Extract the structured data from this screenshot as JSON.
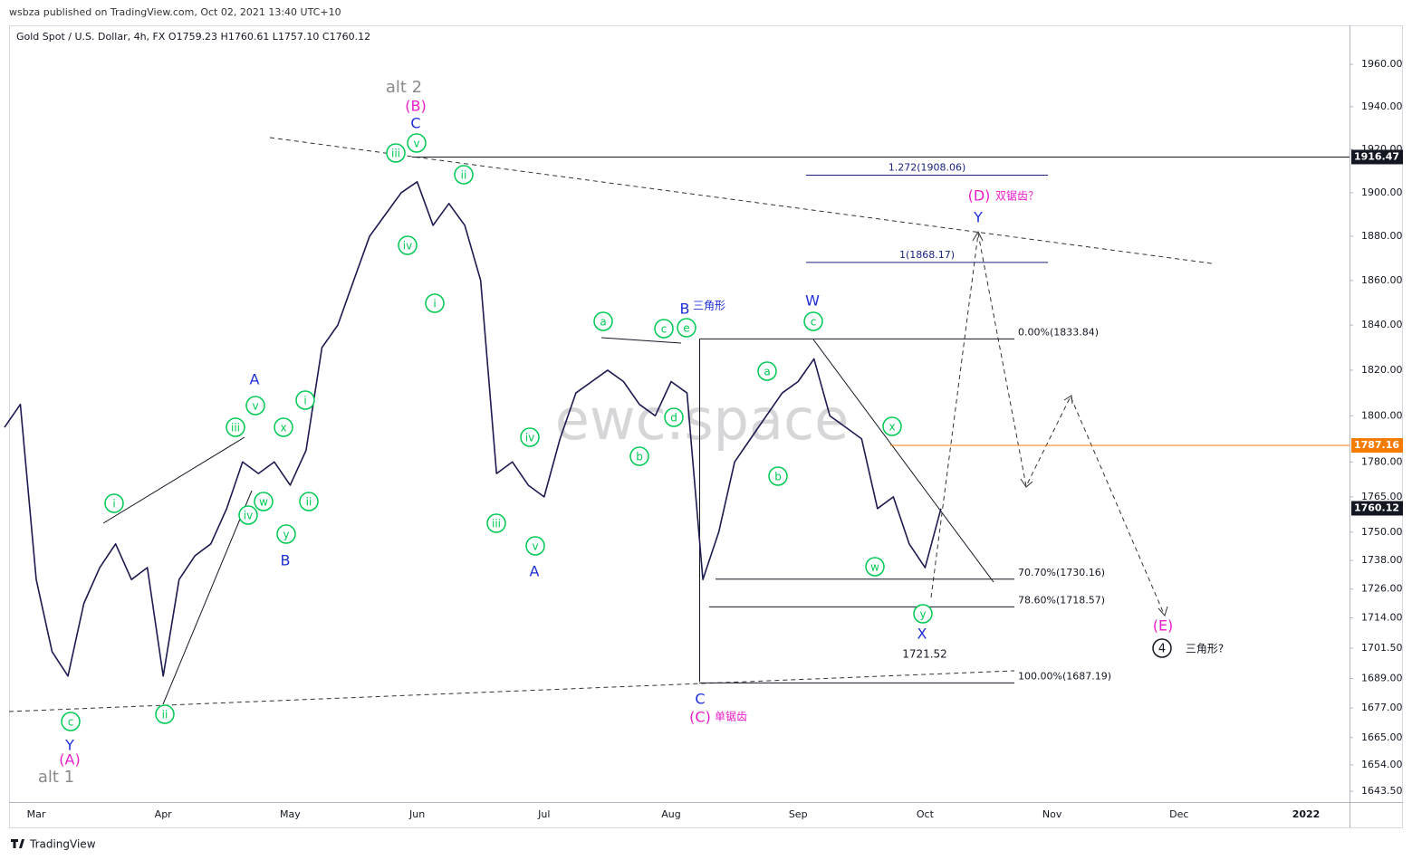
{
  "header": {
    "publisher": "wsbza published on TradingView.com, Oct 02, 2021 13:40 UTC+10",
    "footer": "TradingView",
    "watermark": "ewc.space"
  },
  "chart_data": {
    "type": "line",
    "title": "Gold Spot / U.S. Dollar, 4h, FX  O1759.23  H1760.61  L1757.10  C1760.12",
    "log_scale": true,
    "grid": false,
    "categories": [
      null,
      null,
      "Mar",
      null,
      null,
      null,
      null,
      null,
      null,
      null,
      "Apr",
      null,
      null,
      null,
      null,
      null,
      null,
      null,
      "May",
      null,
      null,
      null,
      null,
      null,
      null,
      null,
      "Jun",
      null,
      null,
      null,
      null,
      null,
      null,
      null,
      "Jul",
      null,
      null,
      null,
      null,
      null,
      null,
      null,
      "Aug",
      null,
      null,
      null,
      null,
      null,
      null,
      null,
      "Sep",
      null,
      null,
      null,
      null,
      null,
      null,
      null,
      "Oct",
      null,
      null,
      null,
      null,
      null,
      null,
      null,
      "Nov",
      null,
      null,
      null,
      null,
      null,
      null,
      null,
      "Dec",
      null,
      null,
      null,
      null,
      null,
      null,
      null,
      "2022",
      null,
      null
    ],
    "series": [
      {
        "name": "XAUUSD",
        "color": "#1c1a4f",
        "values": [
          1795,
          1805,
          1730,
          1700,
          1690,
          1720,
          1735,
          1745,
          1730,
          1735,
          1690,
          1730,
          1740,
          1745,
          1760,
          1780,
          1775,
          1780,
          1770,
          1785,
          1830,
          1840,
          1860,
          1880,
          1890,
          1900,
          1905,
          1885,
          1895,
          1885,
          1860,
          1775,
          1780,
          1770,
          1765,
          1790,
          1810,
          1815,
          1820,
          1815,
          1805,
          1800,
          1815,
          1810,
          1730,
          1750,
          1780,
          1790,
          1800,
          1810,
          1815,
          1825,
          1800,
          1795,
          1790,
          1760,
          1765,
          1745,
          1735,
          1760,
          null,
          null,
          null,
          null,
          null,
          null,
          null,
          null,
          null,
          null,
          null,
          null,
          null,
          null,
          null,
          null,
          null,
          null,
          null,
          null,
          null,
          null,
          null,
          null,
          null
        ]
      }
    ],
    "ylim": [
      1639.2,
      1978.6
    ],
    "yticks": [
      {
        "value": 1960,
        "label": "1960.00"
      },
      {
        "value": 1940,
        "label": "1940.00"
      },
      {
        "value": 1920,
        "label": "1920.00"
      },
      {
        "value": 1900,
        "label": "1900.00"
      },
      {
        "value": 1880,
        "label": "1880.00"
      },
      {
        "value": 1860,
        "label": "1860.00"
      },
      {
        "value": 1840,
        "label": "1840.00"
      },
      {
        "value": 1820,
        "label": "1820.00"
      },
      {
        "value": 1800,
        "label": "1800.00"
      },
      {
        "value": 1780,
        "label": "1780.00"
      },
      {
        "value": 1765,
        "label": "1765.00"
      },
      {
        "value": 1750,
        "label": "1750.00"
      },
      {
        "value": 1738,
        "label": "1738.00"
      },
      {
        "value": 1726,
        "label": "1726.00"
      },
      {
        "value": 1714,
        "label": "1714.00"
      },
      {
        "value": 1701.5,
        "label": "1701.50"
      },
      {
        "value": 1689,
        "label": "1689.00"
      },
      {
        "value": 1677,
        "label": "1677.00"
      },
      {
        "value": 1665,
        "label": "1665.00"
      },
      {
        "value": 1654,
        "label": "1654.00"
      },
      {
        "value": 1643.5,
        "label": "1643.50"
      }
    ],
    "price_lines": [
      {
        "value": 1916.47,
        "color": "#131722"
      },
      {
        "value": 1787.16,
        "color": "#f57c00"
      },
      {
        "value": 1760.12,
        "color": "#131722"
      }
    ],
    "fib_levels": [
      {
        "value": 1908.06,
        "label": "1.272(1908.06)",
        "color": "#1a237e"
      },
      {
        "value": 1868.17,
        "label": "1(1868.17)",
        "color": "#1a237e"
      },
      {
        "value": 1833.84,
        "label": "0.00%(1833.84)",
        "color": "#131722"
      },
      {
        "value": 1730.16,
        "label": "70.70%(1730.16)",
        "color": "#131722"
      },
      {
        "value": 1718.57,
        "label": "78.60%(1718.57)",
        "color": "#131722"
      },
      {
        "value": 1687.19,
        "label": "100.00%(1687.19)",
        "color": "#131722"
      }
    ],
    "annotations": [
      {
        "text": "c",
        "style": "circle",
        "color": "#00c853"
      },
      {
        "text": "ii",
        "style": "circle",
        "color": "#00c853"
      },
      {
        "text": "i",
        "style": "circle",
        "color": "#00c853"
      },
      {
        "text": "iii",
        "style": "circle",
        "color": "#00c853"
      },
      {
        "text": "iv",
        "style": "circle",
        "color": "#00c853"
      },
      {
        "text": "v",
        "style": "circle",
        "color": "#00c853"
      },
      {
        "text": "w",
        "style": "circle",
        "color": "#00c853"
      },
      {
        "text": "x",
        "style": "circle",
        "color": "#00c853"
      },
      {
        "text": "y",
        "style": "circle",
        "color": "#00c853"
      },
      {
        "text": "i",
        "style": "circle",
        "color": "#00c853"
      },
      {
        "text": "ii",
        "style": "circle",
        "color": "#00c853"
      },
      {
        "text": "iii",
        "style": "circle",
        "color": "#00c853"
      },
      {
        "text": "v",
        "style": "circle",
        "color": "#00c853"
      },
      {
        "text": "ii",
        "style": "circle",
        "color": "#00c853"
      },
      {
        "text": "iv",
        "style": "circle",
        "color": "#00c853"
      },
      {
        "text": "i",
        "style": "circle",
        "color": "#00c853"
      },
      {
        "text": "iv",
        "style": "circle",
        "color": "#00c853"
      },
      {
        "text": "iii",
        "style": "circle",
        "color": "#00c853"
      },
      {
        "text": "v",
        "style": "circle",
        "color": "#00c853"
      },
      {
        "text": "a",
        "style": "circle",
        "color": "#00c853"
      },
      {
        "text": "b",
        "style": "circle",
        "color": "#00c853"
      },
      {
        "text": "c",
        "style": "circle",
        "color": "#00c853"
      },
      {
        "text": "d",
        "style": "circle",
        "color": "#00c853"
      },
      {
        "text": "e",
        "style": "circle",
        "color": "#00c853"
      },
      {
        "text": "a",
        "style": "circle",
        "color": "#00c853"
      },
      {
        "text": "b",
        "style": "circle",
        "color": "#00c853"
      },
      {
        "text": "c",
        "style": "circle",
        "color": "#00c853"
      },
      {
        "text": "x",
        "style": "circle",
        "color": "#00c853"
      },
      {
        "text": "w",
        "style": "circle",
        "color": "#00c853"
      },
      {
        "text": "y",
        "style": "circle",
        "color": "#00c853"
      },
      {
        "text": "Y",
        "style": "big",
        "color": "#1e2fd6"
      },
      {
        "text": "A",
        "style": "big",
        "color": "#1e2fd6"
      },
      {
        "text": "B",
        "style": "big",
        "color": "#1e2fd6"
      },
      {
        "text": "C",
        "style": "big",
        "color": "#1e2fd6"
      },
      {
        "text": "A",
        "style": "big",
        "color": "#1e2fd6"
      },
      {
        "text": "B",
        "style": "big",
        "color": "#1e2fd6"
      },
      {
        "text": "三角形",
        "style": "small",
        "color": "#1e2fd6"
      },
      {
        "text": "W",
        "style": "big",
        "color": "#1e2fd6"
      },
      {
        "text": "C",
        "style": "big",
        "color": "#1e2fd6"
      },
      {
        "text": "X",
        "style": "big",
        "color": "#1e2fd6"
      },
      {
        "text": "Y",
        "style": "big",
        "color": "#1e2fd6"
      },
      {
        "text": "(A)",
        "style": "big",
        "color": "#e91ec8"
      },
      {
        "text": "(B)",
        "style": "big",
        "color": "#e91ec8"
      },
      {
        "text": "(C)",
        "style": "big",
        "color": "#e91ec8"
      },
      {
        "text": "单锯齿",
        "style": "small",
        "color": "#e91ec8"
      },
      {
        "text": "(D)",
        "style": "big",
        "color": "#e91ec8"
      },
      {
        "text": "双锯齿？",
        "style": "small",
        "color": "#e91ec8"
      },
      {
        "text": "(E)",
        "style": "big",
        "color": "#e91ec8"
      },
      {
        "text": "alt 2",
        "style": "huge",
        "color": "#8a8a8a"
      },
      {
        "text": "alt 1",
        "style": "huge",
        "color": "#8a8a8a"
      },
      {
        "text": "1721.52",
        "style": "small",
        "color": "#131722"
      },
      {
        "text": "4",
        "style": "ring",
        "color": "#131722"
      },
      {
        "text": "三角形?",
        "style": "small",
        "color": "#131722"
      }
    ]
  }
}
